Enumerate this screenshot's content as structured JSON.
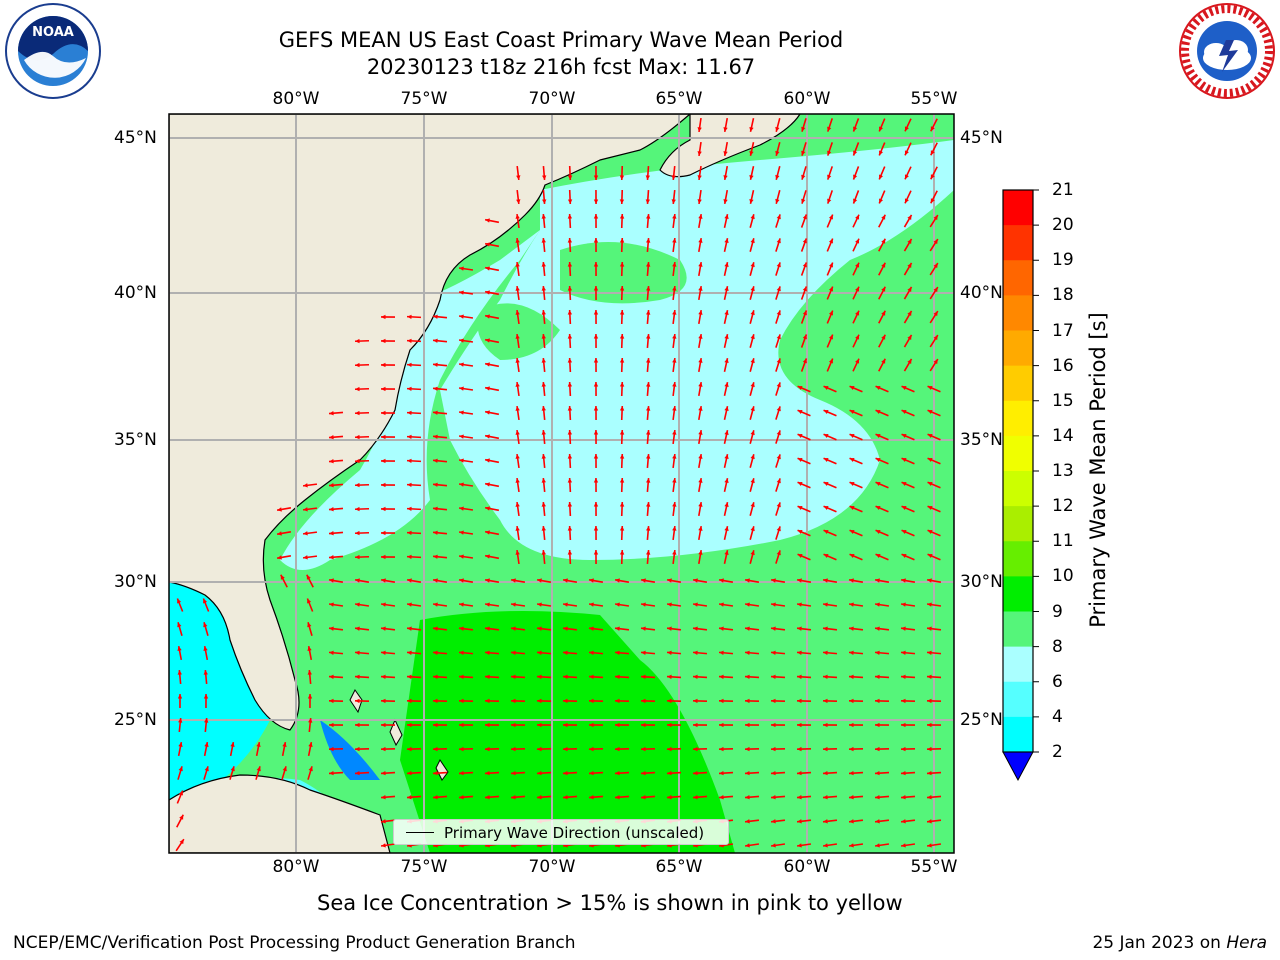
{
  "title": {
    "line1": "GEFS MEAN US East Coast Primary Wave Mean Period",
    "line2": "20230123 t18z 216h fcst   Max: 11.67"
  },
  "logos": {
    "left": {
      "icon": "noaa-logo",
      "text": "NOAA"
    },
    "right": {
      "icon": "nws-logo"
    }
  },
  "map": {
    "lon_labels": [
      "80°W",
      "75°W",
      "70°W",
      "65°W",
      "60°W",
      "55°W"
    ],
    "lat_labels": [
      "45°N",
      "40°N",
      "35°N",
      "30°N",
      "25°N"
    ],
    "land_color": "#efebdc",
    "grid_color": "#b0b0b0",
    "arrow_color": "#ff0000",
    "legend": "Primary Wave Direction (unscaled)"
  },
  "colorbar": {
    "title": "Primary Wave Mean Period [s]",
    "labels": [
      "21",
      "20",
      "19",
      "18",
      "17",
      "16",
      "15",
      "14",
      "13",
      "12",
      "11",
      "10",
      "9",
      "8",
      "6",
      "4",
      "2"
    ],
    "colors": [
      "#ff0000",
      "#ff3300",
      "#ff6600",
      "#ff8800",
      "#ffaa00",
      "#ffcc00",
      "#ffee00",
      "#f0ff00",
      "#ccff00",
      "#aaee00",
      "#66ee00",
      "#00ee00",
      "#55f57a",
      "#aaffff",
      "#55ffff",
      "#00ffff",
      "#0088ff"
    ],
    "under_color": "#0000ff"
  },
  "subtitle": "Sea Ice Concentration > 15% is shown in pink to yellow",
  "footer": {
    "left": "NCEP/EMC/Verification Post Processing Product Generation Branch",
    "date": "25 Jan 2023 on ",
    "machine": "Hera"
  }
}
